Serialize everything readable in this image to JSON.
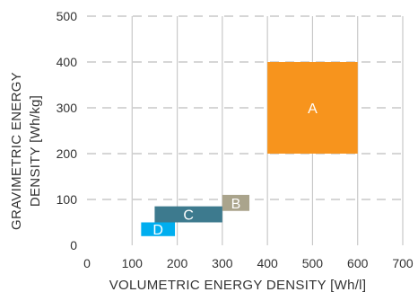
{
  "chart_data": {
    "type": "area",
    "title": "",
    "xlabel": "VOLUMETRIC ENERGY DENSITY [Wh/l]",
    "ylabel_line1": "GRAVIMETRIC ENERGY",
    "ylabel_line2": "DENSITY [Wh/kg]",
    "xlim": [
      0,
      700
    ],
    "ylim": [
      0,
      500
    ],
    "x_ticks": [
      0,
      100,
      200,
      300,
      400,
      500,
      600,
      700
    ],
    "y_ticks": [
      0,
      100,
      200,
      300,
      400,
      500
    ],
    "grid": {
      "vertical": "solid",
      "horizontal": "dashed",
      "color": "#c8c8c8"
    },
    "regions": [
      {
        "label": "A",
        "x_range": [
          400,
          600
        ],
        "y_range": [
          200,
          400
        ],
        "color": "#f7941d"
      },
      {
        "label": "B",
        "x_range": [
          300,
          360
        ],
        "y_range": [
          75,
          110
        ],
        "color": "#aaa48c"
      },
      {
        "label": "C",
        "x_range": [
          150,
          300
        ],
        "y_range": [
          50,
          85
        ],
        "color": "#3d7a8e"
      },
      {
        "label": "D",
        "x_range": [
          120,
          195
        ],
        "y_range": [
          20,
          50
        ],
        "color": "#00aeef"
      }
    ]
  }
}
